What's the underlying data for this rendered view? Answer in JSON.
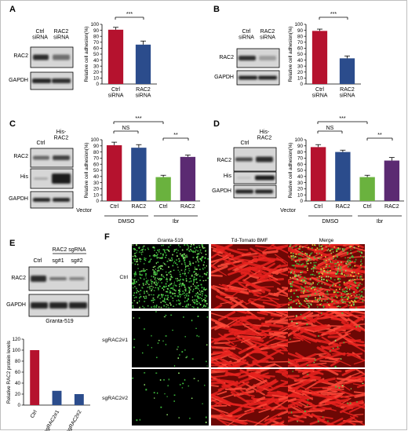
{
  "colors": {
    "ctrl": "#b5122e",
    "rac2": "#2b4c8c",
    "ibr_ctrl": "#6ab23e",
    "ibr_rac2": "#5b2a72",
    "green_cell": "#3ec13e",
    "red_tissue": "#e8231f"
  },
  "panels": {
    "A": {
      "label": "A",
      "blot_lanes": [
        "Ctrl\nsiRNA",
        "RAC2\nsiRNA"
      ],
      "blot_rows": [
        "RAC2",
        "GAPDH"
      ],
      "sig": [
        "***"
      ]
    },
    "B": {
      "label": "B",
      "blot_lanes": [
        "Ctrl\nsiRNA",
        "RAC2\nsiRNA"
      ],
      "blot_rows": [
        "RAC2",
        "GAPDH"
      ],
      "sig": [
        "***"
      ]
    },
    "C": {
      "label": "C",
      "blot_lanes": [
        "Ctrl",
        "His-\nRAC2"
      ],
      "blot_rows": [
        "RAC2",
        "His",
        "GAPDH"
      ],
      "vector": "Vector",
      "groups": [
        "DMSO",
        "Ibr"
      ],
      "sig": [
        "NS",
        "***",
        "**"
      ]
    },
    "D": {
      "label": "D",
      "blot_lanes": [
        "Ctrl",
        "His-\nRAC2"
      ],
      "blot_rows": [
        "RAC2",
        "His",
        "GAPDH"
      ],
      "vector": "Vector",
      "groups": [
        "DMSO",
        "Ibr"
      ],
      "sig": [
        "NS",
        "***",
        "**"
      ]
    },
    "E": {
      "label": "E",
      "header": "RAC2 sgRNA",
      "blot_lanes": [
        "Ctrl",
        "sg#1",
        "sg#2"
      ],
      "blot_rows": [
        "RAC2",
        "GAPDH"
      ],
      "cell_line": "Granta-519"
    },
    "F": {
      "label": "F",
      "columns": [
        "Granta-519",
        "Td-Tomato BMF",
        "Merge"
      ],
      "rows": [
        "Ctrl",
        "sgRAC2#1",
        "sgRAC2#2"
      ],
      "green_density": [
        1.0,
        0.06,
        0.05
      ]
    }
  },
  "chart_data": [
    {
      "id": "A",
      "type": "bar",
      "categories": [
        "Ctrl\nsiRNA",
        "RAC2\nsiRNA"
      ],
      "values": [
        91,
        66
      ],
      "errors": [
        4,
        6
      ],
      "ylabel": "Relative cell adhesion(%)",
      "ylim": [
        0,
        100
      ],
      "yticks": [
        0,
        10,
        20,
        30,
        40,
        50,
        60,
        70,
        80,
        90,
        100
      ]
    },
    {
      "id": "B",
      "type": "bar",
      "categories": [
        "Ctrl\nsiRNA",
        "RAC2\nsiRNA"
      ],
      "values": [
        89,
        43
      ],
      "errors": [
        3,
        4
      ],
      "ylabel": "Relative cell adhesion(%)",
      "ylim": [
        0,
        100
      ],
      "yticks": [
        0,
        10,
        20,
        30,
        40,
        50,
        60,
        70,
        80,
        90,
        100
      ]
    },
    {
      "id": "C",
      "type": "bar",
      "categories": [
        "Ctrl",
        "RAC2",
        "Ctrl",
        "RAC2"
      ],
      "values": [
        91,
        87,
        39,
        72
      ],
      "errors": [
        5,
        5,
        3,
        3
      ],
      "ylabel": "Relative cell adhesion(%)",
      "ylim": [
        0,
        100
      ],
      "yticks": [
        0,
        10,
        20,
        30,
        40,
        50,
        60,
        70,
        80,
        90,
        100
      ]
    },
    {
      "id": "D",
      "type": "bar",
      "categories": [
        "Ctrl",
        "RAC2",
        "Ctrl",
        "RAC2"
      ],
      "values": [
        88,
        80,
        39,
        66
      ],
      "errors": [
        4,
        3,
        3,
        5
      ],
      "ylabel": "Relative cell adhesion(%)",
      "ylim": [
        0,
        100
      ],
      "yticks": [
        0,
        10,
        20,
        30,
        40,
        50,
        60,
        70,
        80,
        90,
        100
      ]
    },
    {
      "id": "E",
      "type": "bar",
      "categories": [
        "Ctrl",
        "sgRAC2#1",
        "sgRAC2#2"
      ],
      "values": [
        100,
        26,
        20
      ],
      "ylabel": "Relative RAC2 protein levels",
      "ylim": [
        0,
        120
      ],
      "yticks": [
        0,
        20,
        40,
        60,
        80,
        100,
        120
      ]
    }
  ]
}
